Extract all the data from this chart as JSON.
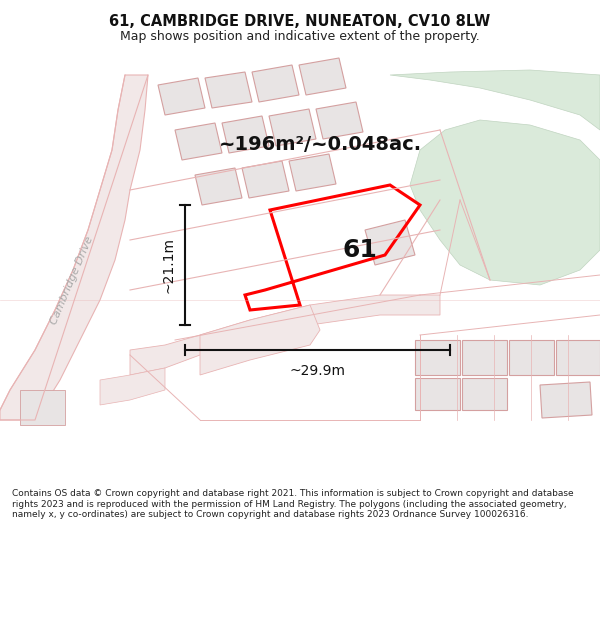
{
  "title": "61, CAMBRIDGE DRIVE, NUNEATON, CV10 8LW",
  "subtitle": "Map shows position and indicative extent of the property.",
  "footer": "Contains OS data © Crown copyright and database right 2021. This information is subject to Crown copyright and database rights 2023 and is reproduced with the permission of HM Land Registry. The polygons (including the associated geometry, namely x, y co-ordinates) are subject to Crown copyright and database rights 2023 Ordnance Survey 100026316.",
  "area_label": "~196m²/~0.048ac.",
  "number_label": "61",
  "width_label": "~29.9m",
  "height_label": "~21.1m",
  "map_bg": "#f9f6f6",
  "road_fill": "#f2e8e8",
  "road_edge": "#e8b4b4",
  "building_fill": "#e8e4e4",
  "building_edge": "#d4a0a0",
  "green_fill": "#daeada",
  "green_edge": "#c0d4c0",
  "highlight_color": "#ff0000",
  "cambridge_drive_label": "Cambridge Drive",
  "road_label_color": "#aaaaaa",
  "dim_color": "#111111",
  "label_color": "#111111",
  "figsize": [
    6.0,
    6.25
  ],
  "dpi": 100,
  "title_fontsize": 10.5,
  "subtitle_fontsize": 9,
  "area_fontsize": 14,
  "number_fontsize": 18,
  "dim_fontsize": 10,
  "footer_fontsize": 6.5
}
